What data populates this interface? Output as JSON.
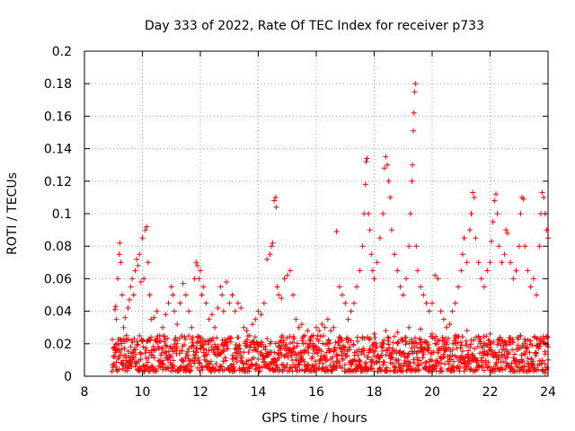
{
  "chart_data": {
    "type": "scatter",
    "title": "Day 333 of 2022, Rate Of TEC Index for receiver p733",
    "xlabel": "GPS time / hours",
    "ylabel": "ROTI / TECUs",
    "xlim": [
      8,
      24
    ],
    "ylim": [
      0,
      0.2
    ],
    "xticks": [
      8,
      10,
      12,
      14,
      16,
      18,
      20,
      22,
      24
    ],
    "xtick_labels": [
      "8",
      "10",
      "12",
      "14",
      "16",
      "18",
      "20",
      "22",
      "24"
    ],
    "yticks": [
      0,
      0.02,
      0.04,
      0.06,
      0.08,
      0.1,
      0.12,
      0.14,
      0.16,
      0.18,
      0.2
    ],
    "ytick_labels": [
      "0",
      "0.02",
      "0.04",
      "0.06",
      "0.08",
      "0.1",
      "0.12",
      "0.14",
      "0.16",
      "0.18",
      "0.2"
    ],
    "grid": true,
    "marker": "+",
    "color": "#ff0000",
    "series": [
      {
        "name": "ROTI",
        "points": [
          [
            9.0,
            0.012
          ],
          [
            9.05,
            0.041
          ],
          [
            9.08,
            0.043
          ],
          [
            9.1,
            0.035
          ],
          [
            9.12,
            0.02
          ],
          [
            9.15,
            0.06
          ],
          [
            9.2,
            0.075
          ],
          [
            9.22,
            0.082
          ],
          [
            9.25,
            0.07
          ],
          [
            9.3,
            0.05
          ],
          [
            9.35,
            0.03
          ],
          [
            9.4,
            0.036
          ],
          [
            9.45,
            0.025
          ],
          [
            9.5,
            0.042
          ],
          [
            9.55,
            0.047
          ],
          [
            9.6,
            0.055
          ],
          [
            9.65,
            0.06
          ],
          [
            9.7,
            0.05
          ],
          [
            9.75,
            0.065
          ],
          [
            9.8,
            0.072
          ],
          [
            9.85,
            0.068
          ],
          [
            9.9,
            0.075
          ],
          [
            9.95,
            0.058
          ],
          [
            10.0,
            0.085
          ],
          [
            10.05,
            0.06
          ],
          [
            10.1,
            0.09
          ],
          [
            10.15,
            0.092
          ],
          [
            10.2,
            0.07
          ],
          [
            10.25,
            0.05
          ],
          [
            10.3,
            0.035
          ],
          [
            10.4,
            0.036
          ],
          [
            10.5,
            0.04
          ],
          [
            10.6,
            0.025
          ],
          [
            10.7,
            0.03
          ],
          [
            10.8,
            0.038
          ],
          [
            10.9,
            0.045
          ],
          [
            11.0,
            0.055
          ],
          [
            11.05,
            0.05
          ],
          [
            11.1,
            0.04
          ],
          [
            11.2,
            0.032
          ],
          [
            11.3,
            0.045
          ],
          [
            11.4,
            0.057
          ],
          [
            11.5,
            0.05
          ],
          [
            11.6,
            0.04
          ],
          [
            11.7,
            0.03
          ],
          [
            11.8,
            0.06
          ],
          [
            11.85,
            0.07
          ],
          [
            11.9,
            0.068
          ],
          [
            11.95,
            0.06
          ],
          [
            12.0,
            0.065
          ],
          [
            12.05,
            0.05
          ],
          [
            12.1,
            0.055
          ],
          [
            12.2,
            0.045
          ],
          [
            12.3,
            0.035
          ],
          [
            12.4,
            0.038
          ],
          [
            12.5,
            0.03
          ],
          [
            12.6,
            0.042
          ],
          [
            12.7,
            0.055
          ],
          [
            12.75,
            0.05
          ],
          [
            12.8,
            0.04
          ],
          [
            12.9,
            0.058
          ],
          [
            13.0,
            0.045
          ],
          [
            13.1,
            0.05
          ],
          [
            13.2,
            0.04
          ],
          [
            13.3,
            0.045
          ],
          [
            13.4,
            0.042
          ],
          [
            13.5,
            0.03
          ],
          [
            13.6,
            0.028
          ],
          [
            13.7,
            0.025
          ],
          [
            13.8,
            0.032
          ],
          [
            13.9,
            0.035
          ],
          [
            14.0,
            0.04
          ],
          [
            14.1,
            0.038
          ],
          [
            14.2,
            0.045
          ],
          [
            14.3,
            0.072
          ],
          [
            14.4,
            0.075
          ],
          [
            14.45,
            0.08
          ],
          [
            14.5,
            0.082
          ],
          [
            14.55,
            0.108
          ],
          [
            14.6,
            0.11
          ],
          [
            14.62,
            0.104
          ],
          [
            14.65,
            0.055
          ],
          [
            14.7,
            0.05
          ],
          [
            14.8,
            0.048
          ],
          [
            14.9,
            0.06
          ],
          [
            15.0,
            0.062
          ],
          [
            15.1,
            0.065
          ],
          [
            15.2,
            0.05
          ],
          [
            15.3,
            0.035
          ],
          [
            15.4,
            0.03
          ],
          [
            15.5,
            0.032
          ],
          [
            15.6,
            0.025
          ],
          [
            15.7,
            0.028
          ],
          [
            15.8,
            0.022
          ],
          [
            15.9,
            0.025
          ],
          [
            16.0,
            0.03
          ],
          [
            16.1,
            0.028
          ],
          [
            16.2,
            0.032
          ],
          [
            16.3,
            0.03
          ],
          [
            16.4,
            0.035
          ],
          [
            16.5,
            0.028
          ],
          [
            16.6,
            0.03
          ],
          [
            16.7,
            0.089
          ],
          [
            16.8,
            0.055
          ],
          [
            16.9,
            0.05
          ],
          [
            17.0,
            0.045
          ],
          [
            17.1,
            0.035
          ],
          [
            17.2,
            0.04
          ],
          [
            17.3,
            0.045
          ],
          [
            17.4,
            0.055
          ],
          [
            17.5,
            0.065
          ],
          [
            17.6,
            0.08
          ],
          [
            17.65,
            0.1
          ],
          [
            17.7,
            0.118
          ],
          [
            17.72,
            0.132
          ],
          [
            17.75,
            0.134
          ],
          [
            17.8,
            0.1
          ],
          [
            17.85,
            0.09
          ],
          [
            17.9,
            0.075
          ],
          [
            17.95,
            0.065
          ],
          [
            18.0,
            0.06
          ],
          [
            18.1,
            0.07
          ],
          [
            18.2,
            0.085
          ],
          [
            18.3,
            0.1
          ],
          [
            18.35,
            0.128
          ],
          [
            18.4,
            0.135
          ],
          [
            18.45,
            0.13
          ],
          [
            18.5,
            0.12
          ],
          [
            18.55,
            0.11
          ],
          [
            18.6,
            0.09
          ],
          [
            18.7,
            0.075
          ],
          [
            18.8,
            0.065
          ],
          [
            18.9,
            0.055
          ],
          [
            19.0,
            0.05
          ],
          [
            19.1,
            0.06
          ],
          [
            19.2,
            0.08
          ],
          [
            19.25,
            0.1
          ],
          [
            19.3,
            0.12
          ],
          [
            19.32,
            0.13
          ],
          [
            19.35,
            0.151
          ],
          [
            19.37,
            0.162
          ],
          [
            19.4,
            0.175
          ],
          [
            19.42,
            0.18
          ],
          [
            19.45,
            0.08
          ],
          [
            19.5,
            0.065
          ],
          [
            19.6,
            0.055
          ],
          [
            19.7,
            0.05
          ],
          [
            19.8,
            0.045
          ],
          [
            19.9,
            0.04
          ],
          [
            20.0,
            0.045
          ],
          [
            20.1,
            0.062
          ],
          [
            20.2,
            0.06
          ],
          [
            20.3,
            0.04
          ],
          [
            20.4,
            0.035
          ],
          [
            20.5,
            0.03
          ],
          [
            20.6,
            0.032
          ],
          [
            20.7,
            0.04
          ],
          [
            20.8,
            0.045
          ],
          [
            20.9,
            0.055
          ],
          [
            21.0,
            0.065
          ],
          [
            21.05,
            0.075
          ],
          [
            21.1,
            0.085
          ],
          [
            21.2,
            0.07
          ],
          [
            21.3,
            0.09
          ],
          [
            21.35,
            0.1
          ],
          [
            21.4,
            0.113
          ],
          [
            21.45,
            0.11
          ],
          [
            21.5,
            0.085
          ],
          [
            21.6,
            0.07
          ],
          [
            21.7,
            0.06
          ],
          [
            21.8,
            0.055
          ],
          [
            21.9,
            0.065
          ],
          [
            22.0,
            0.07
          ],
          [
            22.05,
            0.083
          ],
          [
            22.1,
            0.095
          ],
          [
            22.15,
            0.108
          ],
          [
            22.2,
            0.112
          ],
          [
            22.25,
            0.1
          ],
          [
            22.3,
            0.08
          ],
          [
            22.4,
            0.07
          ],
          [
            22.5,
            0.075
          ],
          [
            22.55,
            0.09
          ],
          [
            22.6,
            0.088
          ],
          [
            22.7,
            0.07
          ],
          [
            22.8,
            0.06
          ],
          [
            22.9,
            0.065
          ],
          [
            23.0,
            0.08
          ],
          [
            23.05,
            0.1
          ],
          [
            23.1,
            0.11
          ],
          [
            23.15,
            0.109
          ],
          [
            23.2,
            0.08
          ],
          [
            23.3,
            0.065
          ],
          [
            23.4,
            0.055
          ],
          [
            23.5,
            0.06
          ],
          [
            23.6,
            0.05
          ],
          [
            23.7,
            0.08
          ],
          [
            23.75,
            0.1
          ],
          [
            23.8,
            0.113
          ],
          [
            23.85,
            0.11
          ],
          [
            23.9,
            0.1
          ],
          [
            23.95,
            0.09
          ],
          [
            24.0,
            0.085
          ],
          [
            9.3,
            0.017
          ],
          [
            9.6,
            0.018
          ],
          [
            10.0,
            0.022
          ],
          [
            10.4,
            0.016
          ],
          [
            10.8,
            0.019
          ],
          [
            11.2,
            0.02
          ],
          [
            11.6,
            0.017
          ],
          [
            12.0,
            0.021
          ],
          [
            12.4,
            0.018
          ],
          [
            12.8,
            0.02
          ],
          [
            13.2,
            0.017
          ],
          [
            13.6,
            0.019
          ],
          [
            14.0,
            0.018
          ],
          [
            14.4,
            0.02
          ],
          [
            14.8,
            0.019
          ],
          [
            15.2,
            0.017
          ],
          [
            15.6,
            0.016
          ],
          [
            16.0,
            0.018
          ],
          [
            16.4,
            0.02
          ],
          [
            16.8,
            0.019
          ],
          [
            17.2,
            0.022
          ],
          [
            17.6,
            0.024
          ],
          [
            18.0,
            0.026
          ],
          [
            18.4,
            0.028
          ],
          [
            18.8,
            0.027
          ],
          [
            19.2,
            0.03
          ],
          [
            19.6,
            0.029
          ],
          [
            20.0,
            0.026
          ],
          [
            20.4,
            0.022
          ],
          [
            20.8,
            0.025
          ],
          [
            21.2,
            0.028
          ],
          [
            21.6,
            0.024
          ],
          [
            22.0,
            0.026
          ],
          [
            22.4,
            0.022
          ],
          [
            22.8,
            0.021
          ],
          [
            23.2,
            0.02
          ],
          [
            23.6,
            0.019
          ],
          [
            24.0,
            0.018
          ],
          [
            9.1,
            0.004
          ],
          [
            9.5,
            0.006
          ],
          [
            9.9,
            0.003
          ],
          [
            10.3,
            0.005
          ],
          [
            10.7,
            0.004
          ],
          [
            11.1,
            0.006
          ],
          [
            11.5,
            0.003
          ],
          [
            11.9,
            0.005
          ],
          [
            12.3,
            0.004
          ],
          [
            12.7,
            0.006
          ],
          [
            13.1,
            0.003
          ],
          [
            13.5,
            0.005
          ],
          [
            13.9,
            0.004
          ],
          [
            14.3,
            0.006
          ],
          [
            14.7,
            0.003
          ],
          [
            15.1,
            0.005
          ],
          [
            15.5,
            0.004
          ],
          [
            15.9,
            0.006
          ],
          [
            16.3,
            0.003
          ],
          [
            16.7,
            0.005
          ],
          [
            17.1,
            0.004
          ],
          [
            17.5,
            0.006
          ],
          [
            17.9,
            0.005
          ],
          [
            18.3,
            0.007
          ],
          [
            18.7,
            0.006
          ],
          [
            19.1,
            0.008
          ],
          [
            19.5,
            0.007
          ],
          [
            19.9,
            0.006
          ],
          [
            20.3,
            0.005
          ],
          [
            20.7,
            0.006
          ],
          [
            21.1,
            0.005
          ],
          [
            21.5,
            0.004
          ],
          [
            21.9,
            0.006
          ],
          [
            22.3,
            0.004
          ],
          [
            22.7,
            0.003
          ],
          [
            23.1,
            0.004
          ],
          [
            23.5,
            0.003
          ],
          [
            23.9,
            0.002
          ]
        ],
        "dense_band": {
          "x_start": 8.95,
          "x_end": 24.0,
          "baseline_min": 0.003,
          "baseline_max": 0.025
        }
      }
    ]
  }
}
